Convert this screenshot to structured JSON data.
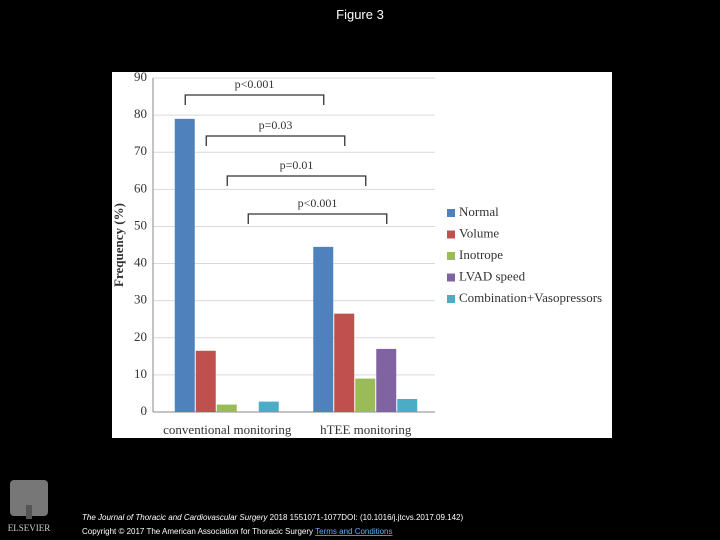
{
  "page": {
    "title": "Figure 3"
  },
  "chart_data": {
    "type": "bar",
    "categories": [
      "conventional monitoring",
      "hTEE monitoring"
    ],
    "series": [
      {
        "name": "Normal",
        "color": "#4f81bd",
        "values": [
          79,
          44.5
        ]
      },
      {
        "name": "Volume",
        "color": "#c0504d",
        "values": [
          16.5,
          26.5
        ]
      },
      {
        "name": "Inotrope",
        "color": "#9bbb59",
        "values": [
          2,
          9
        ]
      },
      {
        "name": "LVAD speed",
        "color": "#8064a2",
        "values": [
          0,
          17
        ]
      },
      {
        "name": "Combination+Vasopressors",
        "color": "#4bacc6",
        "values": [
          2.8,
          3.5
        ]
      }
    ],
    "y_label": "Frequency (%)",
    "ylim": [
      0,
      90
    ],
    "yticks": [
      0,
      10,
      20,
      30,
      40,
      50,
      60,
      70,
      80,
      90
    ],
    "grid": true,
    "legend": "right",
    "annotations": [
      "p<0.001",
      "p=0.03",
      "p=0.01",
      "p<0.001"
    ]
  },
  "footer": {
    "journal": "The Journal of Thoracic and Cardiovascular Surgery",
    "citation": "2018 1551071-1077DOI: (10.1016/j.jtcvs.2017.09.142)",
    "copyright": "Copyright © 2017 The American Association for Thoracic Surgery",
    "link": "Terms and Conditions"
  },
  "logo": {
    "text": "ELSEVIER"
  }
}
